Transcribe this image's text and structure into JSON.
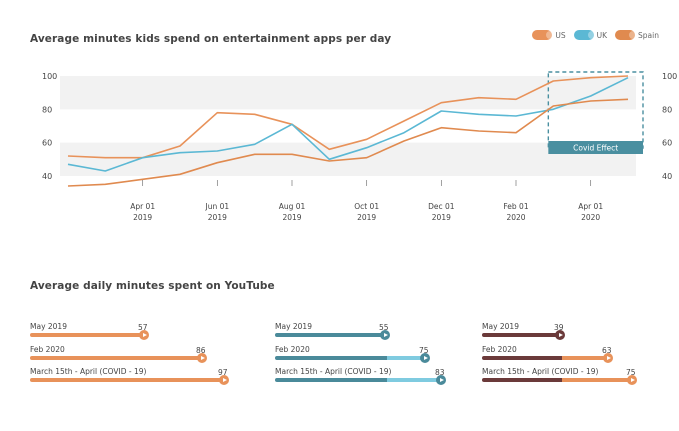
{
  "chart_title": "Average minutes kids spend on entertainment apps per day",
  "youtube_title": "Average daily minutes spent on YouTube",
  "colors": {
    "us": "#e8925a",
    "uk": "#5bb8d4",
    "spain": "#e08a4f",
    "band": "#f2f2f2",
    "covid": "#4a8fa0",
    "bar_uk_main": "#4a8a9a",
    "bar_uk_light": "#7fcbe0",
    "bar_es_main": "#6b3a3a",
    "bar_es_accent": "#e8925a"
  },
  "legend": [
    {
      "label": "US",
      "color": "#e8925a"
    },
    {
      "label": "UK",
      "color": "#5bb8d4"
    },
    {
      "label": "Spain",
      "color": "#e08a4f"
    }
  ],
  "covid_label": "Covid Effect",
  "chart_data": {
    "type": "line",
    "title": "Average minutes kids spend on entertainment apps per day",
    "x": [
      "Feb 2019",
      "Mar 2019",
      "Apr 2019",
      "May 2019",
      "Jun 2019",
      "Jul 2019",
      "Aug 2019",
      "Sep 2019",
      "Oct 2019",
      "Nov 2019",
      "Dec 2019",
      "Jan 2020",
      "Feb 2020",
      "Mar 2020",
      "Apr 2020",
      "May 2020"
    ],
    "x_tick_labels": [
      {
        "at": "Apr 2019",
        "line1": "Apr 01",
        "line2": "2019"
      },
      {
        "at": "Jun 2019",
        "line1": "Jun 01",
        "line2": "2019"
      },
      {
        "at": "Aug 2019",
        "line1": "Aug 01",
        "line2": "2019"
      },
      {
        "at": "Oct 2019",
        "line1": "Oct 01",
        "line2": "2019"
      },
      {
        "at": "Dec 2019",
        "line1": "Dec 01",
        "line2": "2019"
      },
      {
        "at": "Feb 2020",
        "line1": "Feb 01",
        "line2": "2020"
      },
      {
        "at": "Apr 2020",
        "line1": "Apr 01",
        "line2": "2020"
      }
    ],
    "y_ticks": [
      40,
      60,
      80,
      100
    ],
    "ylim": [
      40,
      100
    ],
    "series": [
      {
        "name": "US",
        "values": [
          52,
          51,
          51,
          58,
          78,
          77,
          71,
          56,
          62,
          73,
          84,
          87,
          86,
          97,
          99,
          100
        ]
      },
      {
        "name": "UK",
        "values": [
          47,
          43,
          51,
          54,
          55,
          59,
          71,
          50,
          57,
          66,
          79,
          77,
          76,
          80,
          88,
          99
        ]
      },
      {
        "name": "Spain",
        "values": [
          34,
          35,
          38,
          41,
          48,
          53,
          53,
          49,
          51,
          61,
          69,
          67,
          66,
          82,
          85,
          86
        ]
      }
    ],
    "covid_range": [
      "Mar 2020",
      "May 2020"
    ],
    "grid": false,
    "legend_position": "top-right"
  },
  "youtube": {
    "columns": [
      {
        "country": "US",
        "rows": [
          {
            "label": "May 2019",
            "value": 57
          },
          {
            "label": "Feb 2020",
            "value": 86
          },
          {
            "label": "March 15th - April (COVID - 19)",
            "value": 97
          }
        ]
      },
      {
        "country": "UK",
        "rows": [
          {
            "label": "May 2019",
            "value": 55
          },
          {
            "label": "Feb 2020",
            "value": 75
          },
          {
            "label": "March 15th - April (COVID - 19)",
            "value": 83
          }
        ]
      },
      {
        "country": "Spain",
        "rows": [
          {
            "label": "May 2019",
            "value": 39
          },
          {
            "label": "Feb 2020",
            "value": 63
          },
          {
            "label": "March 15th - April (COVID - 19)",
            "value": 75
          }
        ]
      }
    ]
  }
}
